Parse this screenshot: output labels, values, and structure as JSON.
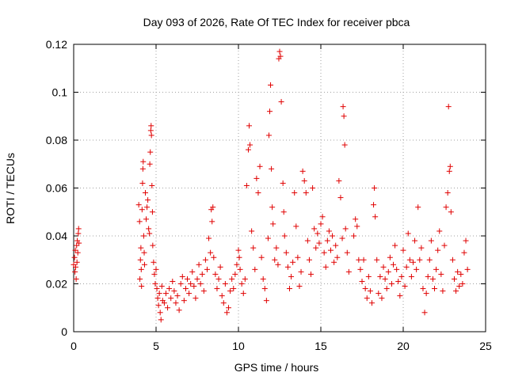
{
  "chart_data": {
    "type": "scatter",
    "title": "Day 093 of 2026, Rate Of TEC Index for receiver pbca",
    "xlabel": "GPS time / hours",
    "ylabel": "ROTI / TECUs",
    "xlim": [
      0,
      25
    ],
    "ylim": [
      0,
      0.12
    ],
    "xticks": [
      0,
      5,
      10,
      15,
      20,
      25
    ],
    "yticks": [
      0,
      0.02,
      0.04,
      0.06,
      0.08,
      0.1,
      0.12
    ],
    "xtick_labels": [
      "0",
      "5",
      "10",
      "15",
      "20",
      "25"
    ],
    "ytick_labels": [
      "0",
      "0.02",
      "0.04",
      "0.06",
      "0.08",
      "0.1",
      "0.12"
    ],
    "grid": true,
    "legend": "none",
    "marker": "+",
    "colors": {
      "series": "#e00000",
      "grid": "#a0a0a0",
      "axis": "#000000"
    },
    "series": [
      {
        "points": [
          [
            0.0,
            0.028
          ],
          [
            0.05,
            0.031
          ],
          [
            0.08,
            0.025
          ],
          [
            0.1,
            0.034
          ],
          [
            0.12,
            0.027
          ],
          [
            0.15,
            0.022
          ],
          [
            0.18,
            0.036
          ],
          [
            0.2,
            0.029
          ],
          [
            0.22,
            0.038
          ],
          [
            0.25,
            0.033
          ],
          [
            0.28,
            0.041
          ],
          [
            0.3,
            0.043
          ],
          [
            0.32,
            0.037
          ],
          [
            3.95,
            0.053
          ],
          [
            4.0,
            0.046
          ],
          [
            4.02,
            0.022
          ],
          [
            4.05,
            0.03
          ],
          [
            4.08,
            0.035
          ],
          [
            4.1,
            0.026
          ],
          [
            4.12,
            0.019
          ],
          [
            4.15,
            0.051
          ],
          [
            4.18,
            0.062
          ],
          [
            4.2,
            0.068
          ],
          [
            4.22,
            0.071
          ],
          [
            4.25,
            0.04
          ],
          [
            4.28,
            0.033
          ],
          [
            4.3,
            0.028
          ],
          [
            4.35,
            0.058
          ],
          [
            4.4,
            0.047
          ],
          [
            4.45,
            0.052
          ],
          [
            4.5,
            0.055
          ],
          [
            4.55,
            0.043
          ],
          [
            4.6,
            0.041
          ],
          [
            4.62,
            0.07
          ],
          [
            4.65,
            0.075
          ],
          [
            4.68,
            0.084
          ],
          [
            4.7,
            0.086
          ],
          [
            4.72,
            0.082
          ],
          [
            4.75,
            0.061
          ],
          [
            4.78,
            0.05
          ],
          [
            4.8,
            0.036
          ],
          [
            4.85,
            0.029
          ],
          [
            4.9,
            0.024
          ],
          [
            4.95,
            0.02
          ],
          [
            5.0,
            0.026
          ],
          [
            5.05,
            0.018
          ],
          [
            5.1,
            0.014
          ],
          [
            5.15,
            0.011
          ],
          [
            5.2,
            0.016
          ],
          [
            5.25,
            0.008
          ],
          [
            5.3,
            0.005
          ],
          [
            5.35,
            0.019
          ],
          [
            5.4,
            0.013
          ],
          [
            5.5,
            0.012
          ],
          [
            5.6,
            0.016
          ],
          [
            5.7,
            0.01
          ],
          [
            5.8,
            0.018
          ],
          [
            5.9,
            0.014
          ],
          [
            6.0,
            0.021
          ],
          [
            6.1,
            0.017
          ],
          [
            6.2,
            0.012
          ],
          [
            6.3,
            0.015
          ],
          [
            6.4,
            0.009
          ],
          [
            6.5,
            0.02
          ],
          [
            6.6,
            0.023
          ],
          [
            6.7,
            0.013
          ],
          [
            6.8,
            0.018
          ],
          [
            6.9,
            0.022
          ],
          [
            7.0,
            0.016
          ],
          [
            7.1,
            0.02
          ],
          [
            7.2,
            0.025
          ],
          [
            7.3,
            0.019
          ],
          [
            7.4,
            0.014
          ],
          [
            7.5,
            0.022
          ],
          [
            7.6,
            0.028
          ],
          [
            7.7,
            0.02
          ],
          [
            7.8,
            0.024
          ],
          [
            7.9,
            0.017
          ],
          [
            8.0,
            0.03
          ],
          [
            8.1,
            0.026
          ],
          [
            8.2,
            0.039
          ],
          [
            8.3,
            0.033
          ],
          [
            8.35,
            0.051
          ],
          [
            8.4,
            0.046
          ],
          [
            8.45,
            0.052
          ],
          [
            8.5,
            0.031
          ],
          [
            8.6,
            0.024
          ],
          [
            8.7,
            0.018
          ],
          [
            8.8,
            0.022
          ],
          [
            8.9,
            0.027
          ],
          [
            9.0,
            0.015
          ],
          [
            9.1,
            0.012
          ],
          [
            9.2,
            0.02
          ],
          [
            9.3,
            0.008
          ],
          [
            9.4,
            0.01
          ],
          [
            9.5,
            0.017
          ],
          [
            9.6,
            0.022
          ],
          [
            9.7,
            0.018
          ],
          [
            9.8,
            0.024
          ],
          [
            9.9,
            0.028
          ],
          [
            10.0,
            0.034
          ],
          [
            10.05,
            0.031
          ],
          [
            10.1,
            0.026
          ],
          [
            10.2,
            0.02
          ],
          [
            10.3,
            0.016
          ],
          [
            10.4,
            0.022
          ],
          [
            10.5,
            0.061
          ],
          [
            10.6,
            0.076
          ],
          [
            10.65,
            0.086
          ],
          [
            10.7,
            0.078
          ],
          [
            10.8,
            0.042
          ],
          [
            10.9,
            0.035
          ],
          [
            11.0,
            0.026
          ],
          [
            11.1,
            0.064
          ],
          [
            11.2,
            0.058
          ],
          [
            11.3,
            0.069
          ],
          [
            11.4,
            0.031
          ],
          [
            11.5,
            0.022
          ],
          [
            11.6,
            0.018
          ],
          [
            11.7,
            0.013
          ],
          [
            11.8,
            0.039
          ],
          [
            11.85,
            0.082
          ],
          [
            11.9,
            0.092
          ],
          [
            11.95,
            0.103
          ],
          [
            12.0,
            0.068
          ],
          [
            12.05,
            0.052
          ],
          [
            12.1,
            0.045
          ],
          [
            12.2,
            0.03
          ],
          [
            12.3,
            0.035
          ],
          [
            12.4,
            0.028
          ],
          [
            12.45,
            0.114
          ],
          [
            12.5,
            0.117
          ],
          [
            12.55,
            0.115
          ],
          [
            12.6,
            0.096
          ],
          [
            12.7,
            0.062
          ],
          [
            12.75,
            0.05
          ],
          [
            12.8,
            0.04
          ],
          [
            12.9,
            0.033
          ],
          [
            13.0,
            0.027
          ],
          [
            13.1,
            0.018
          ],
          [
            13.2,
            0.023
          ],
          [
            13.3,
            0.029
          ],
          [
            13.4,
            0.058
          ],
          [
            13.5,
            0.044
          ],
          [
            13.6,
            0.031
          ],
          [
            13.7,
            0.019
          ],
          [
            13.8,
            0.025
          ],
          [
            13.9,
            0.067
          ],
          [
            14.0,
            0.063
          ],
          [
            14.1,
            0.058
          ],
          [
            14.2,
            0.038
          ],
          [
            14.3,
            0.03
          ],
          [
            14.4,
            0.024
          ],
          [
            14.5,
            0.06
          ],
          [
            14.6,
            0.043
          ],
          [
            14.7,
            0.035
          ],
          [
            14.8,
            0.041
          ],
          [
            14.9,
            0.037
          ],
          [
            15.0,
            0.045
          ],
          [
            15.1,
            0.048
          ],
          [
            15.2,
            0.033
          ],
          [
            15.3,
            0.027
          ],
          [
            15.4,
            0.038
          ],
          [
            15.5,
            0.042
          ],
          [
            15.6,
            0.034
          ],
          [
            15.7,
            0.04
          ],
          [
            15.8,
            0.029
          ],
          [
            15.9,
            0.036
          ],
          [
            16.0,
            0.031
          ],
          [
            16.1,
            0.063
          ],
          [
            16.2,
            0.056
          ],
          [
            16.3,
            0.039
          ],
          [
            16.35,
            0.094
          ],
          [
            16.4,
            0.09
          ],
          [
            16.45,
            0.078
          ],
          [
            16.5,
            0.043
          ],
          [
            16.6,
            0.033
          ],
          [
            16.7,
            0.025
          ],
          [
            17.0,
            0.04
          ],
          [
            17.1,
            0.047
          ],
          [
            17.2,
            0.044
          ],
          [
            17.3,
            0.03
          ],
          [
            17.4,
            0.026
          ],
          [
            17.5,
            0.021
          ],
          [
            17.6,
            0.03
          ],
          [
            17.7,
            0.018
          ],
          [
            17.8,
            0.014
          ],
          [
            17.9,
            0.023
          ],
          [
            18.0,
            0.017
          ],
          [
            18.1,
            0.012
          ],
          [
            18.2,
            0.053
          ],
          [
            18.25,
            0.06
          ],
          [
            18.3,
            0.048
          ],
          [
            18.4,
            0.03
          ],
          [
            18.5,
            0.016
          ],
          [
            18.6,
            0.023
          ],
          [
            18.7,
            0.014
          ],
          [
            18.8,
            0.027
          ],
          [
            18.9,
            0.022
          ],
          [
            19.0,
            0.018
          ],
          [
            19.1,
            0.025
          ],
          [
            19.2,
            0.031
          ],
          [
            19.3,
            0.02
          ],
          [
            19.4,
            0.028
          ],
          [
            19.5,
            0.036
          ],
          [
            19.6,
            0.026
          ],
          [
            19.7,
            0.021
          ],
          [
            19.8,
            0.015
          ],
          [
            19.9,
            0.023
          ],
          [
            20.0,
            0.034
          ],
          [
            20.1,
            0.019
          ],
          [
            20.2,
            0.027
          ],
          [
            20.3,
            0.041
          ],
          [
            20.4,
            0.03
          ],
          [
            20.5,
            0.023
          ],
          [
            20.6,
            0.029
          ],
          [
            20.7,
            0.038
          ],
          [
            20.8,
            0.026
          ],
          [
            20.9,
            0.052
          ],
          [
            21.0,
            0.03
          ],
          [
            21.1,
            0.035
          ],
          [
            21.2,
            0.018
          ],
          [
            21.3,
            0.008
          ],
          [
            21.4,
            0.016
          ],
          [
            21.5,
            0.023
          ],
          [
            21.6,
            0.03
          ],
          [
            21.7,
            0.038
          ],
          [
            21.8,
            0.022
          ],
          [
            21.9,
            0.018
          ],
          [
            22.0,
            0.026
          ],
          [
            22.1,
            0.034
          ],
          [
            22.2,
            0.042
          ],
          [
            22.3,
            0.024
          ],
          [
            22.4,
            0.017
          ],
          [
            22.5,
            0.036
          ],
          [
            22.6,
            0.052
          ],
          [
            22.7,
            0.058
          ],
          [
            22.75,
            0.094
          ],
          [
            22.8,
            0.067
          ],
          [
            22.85,
            0.069
          ],
          [
            22.9,
            0.05
          ],
          [
            23.0,
            0.03
          ],
          [
            23.1,
            0.022
          ],
          [
            23.2,
            0.017
          ],
          [
            23.3,
            0.025
          ],
          [
            23.4,
            0.019
          ],
          [
            23.5,
            0.024
          ],
          [
            23.6,
            0.02
          ],
          [
            23.7,
            0.033
          ],
          [
            23.8,
            0.038
          ],
          [
            23.9,
            0.026
          ]
        ]
      }
    ]
  }
}
